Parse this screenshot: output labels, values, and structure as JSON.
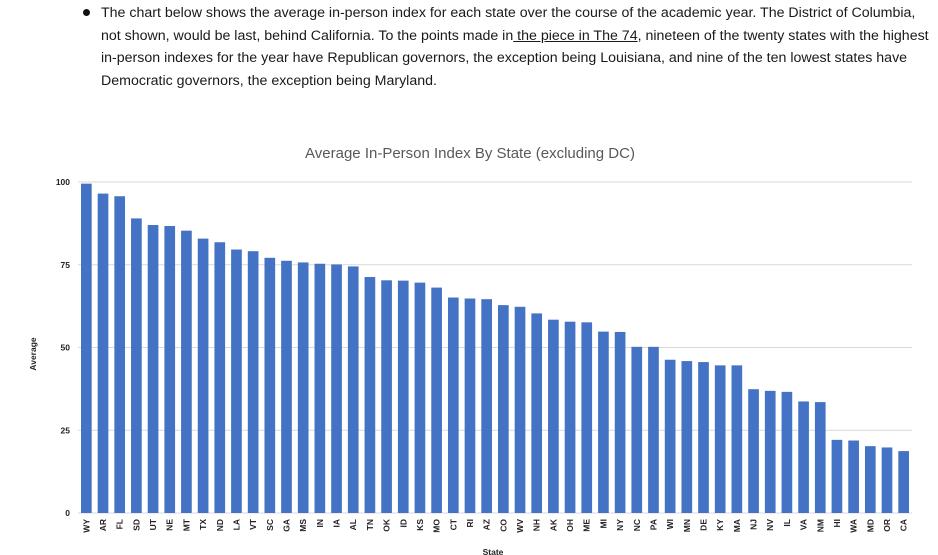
{
  "article": {
    "text_before_link": "The chart below shows the average in-person index for each state over the course of the academic year. The District of Columbia, not shown, would be last, behind California. To the points made in",
    "link_text": " the piece in The 74",
    "text_after_link": ", nineteen of the twenty states with the highest in-person indexes for the year have Republican governors, the exception being Louisiana, and nine of the ten lowest states have Democratic governors, the exception being Maryland."
  },
  "chart_data": {
    "type": "bar",
    "title": "Average In-Person Index By State (excluding DC)",
    "xlabel": "State",
    "ylabel": "Average",
    "ylim": [
      0,
      100
    ],
    "yticks": [
      0,
      25,
      50,
      75,
      100
    ],
    "grid": true,
    "bar_color": "#4472c4",
    "categories": [
      "WY",
      "AR",
      "FL",
      "SD",
      "UT",
      "NE",
      "MT",
      "TX",
      "ND",
      "LA",
      "VT",
      "SC",
      "GA",
      "MS",
      "IN",
      "IA",
      "AL",
      "TN",
      "OK",
      "ID",
      "KS",
      "MO",
      "CT",
      "RI",
      "AZ",
      "CO",
      "WV",
      "NH",
      "AK",
      "OH",
      "ME",
      "MI",
      "NY",
      "NC",
      "PA",
      "WI",
      "MN",
      "DE",
      "KY",
      "MA",
      "NJ",
      "NV",
      "IL",
      "VA",
      "NM",
      "HI",
      "WA",
      "MD",
      "OR",
      "CA"
    ],
    "values": [
      99.5,
      96.5,
      95.7,
      89,
      87,
      86.7,
      85.3,
      82.9,
      81.8,
      79.6,
      79.1,
      77.1,
      76.2,
      75.7,
      75.3,
      75.1,
      74.5,
      71.3,
      70.3,
      70.2,
      69.6,
      68.1,
      65.1,
      64.8,
      64.6,
      62.8,
      62.3,
      60.3,
      58.4,
      57.8,
      57.6,
      54.8,
      54.7,
      50.2,
      50.2,
      46.3,
      45.9,
      45.6,
      44.6,
      44.6,
      37.4,
      36.9,
      36.6,
      33.7,
      33.5,
      22.1,
      21.9,
      20.2,
      19.8,
      18.7
    ]
  }
}
